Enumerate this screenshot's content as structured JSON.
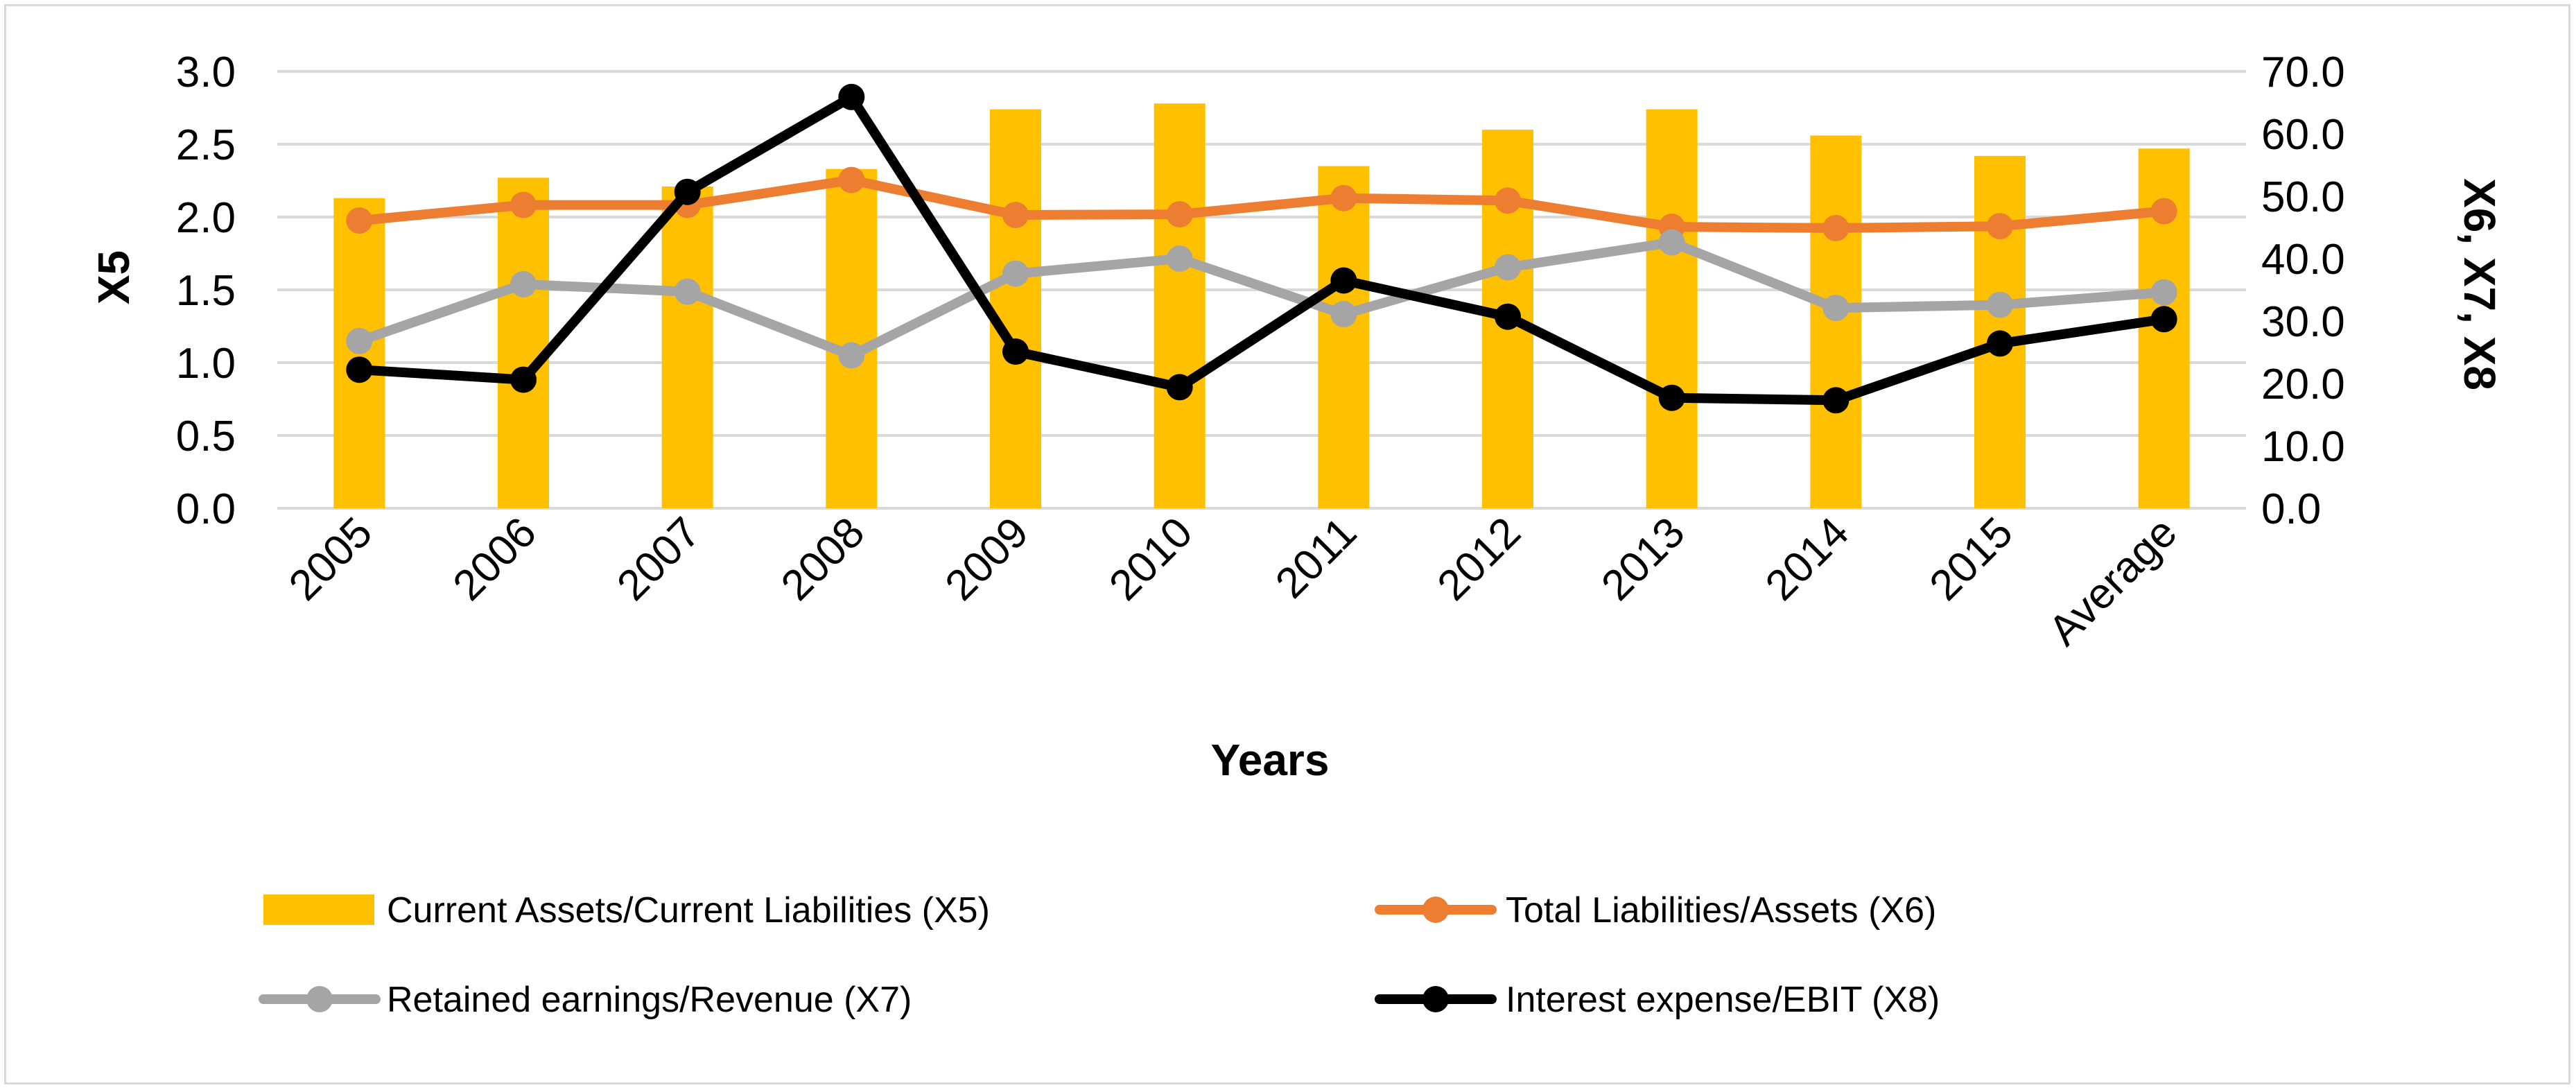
{
  "chart_data": {
    "type": "bar+line",
    "categories": [
      "2005",
      "2006",
      "2007",
      "2008",
      "2009",
      "2010",
      "2011",
      "2012",
      "2013",
      "2014",
      "2015",
      "Average"
    ],
    "xlabel": "Years",
    "ylabel_left": "X5",
    "ylabel_right": "X6, X7, X8",
    "ylim_left": [
      0,
      3.0
    ],
    "ylim_right": [
      0,
      70.0
    ],
    "yticks_left": [
      "0.0",
      "0.5",
      "1.0",
      "1.5",
      "2.0",
      "2.5",
      "3.0"
    ],
    "yticks_right": [
      "0.0",
      "10.0",
      "20.0",
      "30.0",
      "40.0",
      "50.0",
      "60.0",
      "70.0"
    ],
    "grid": true,
    "legend_position": "bottom",
    "series": [
      {
        "name": "Current Assets/Current Liabilities (X5)",
        "type": "bar",
        "axis": "left",
        "color": "#FFC000",
        "values": [
          2.13,
          2.27,
          2.21,
          2.33,
          2.74,
          2.78,
          2.35,
          2.6,
          2.74,
          2.56,
          2.42,
          2.47
        ]
      },
      {
        "name": "Total Liabilities/Assets (X6)",
        "type": "line",
        "axis": "right",
        "color": "#ED7D31",
        "values": [
          46.1,
          48.6,
          48.6,
          52.6,
          47.0,
          47.1,
          49.7,
          49.3,
          45.1,
          44.9,
          45.2,
          47.6
        ]
      },
      {
        "name": "Retained earnings/Revenue (X7)",
        "type": "line",
        "axis": "right",
        "color": "#A5A5A5",
        "values": [
          26.8,
          35.9,
          34.7,
          24.5,
          37.6,
          40.0,
          31.1,
          38.6,
          42.6,
          32.1,
          32.6,
          34.6
        ]
      },
      {
        "name": "Interest expense/EBIT (X8)",
        "type": "line",
        "axis": "right",
        "color": "#000000",
        "values": [
          22.2,
          20.6,
          50.7,
          65.9,
          25.1,
          19.4,
          36.5,
          30.7,
          17.7,
          17.3,
          26.4,
          30.3
        ]
      }
    ]
  }
}
